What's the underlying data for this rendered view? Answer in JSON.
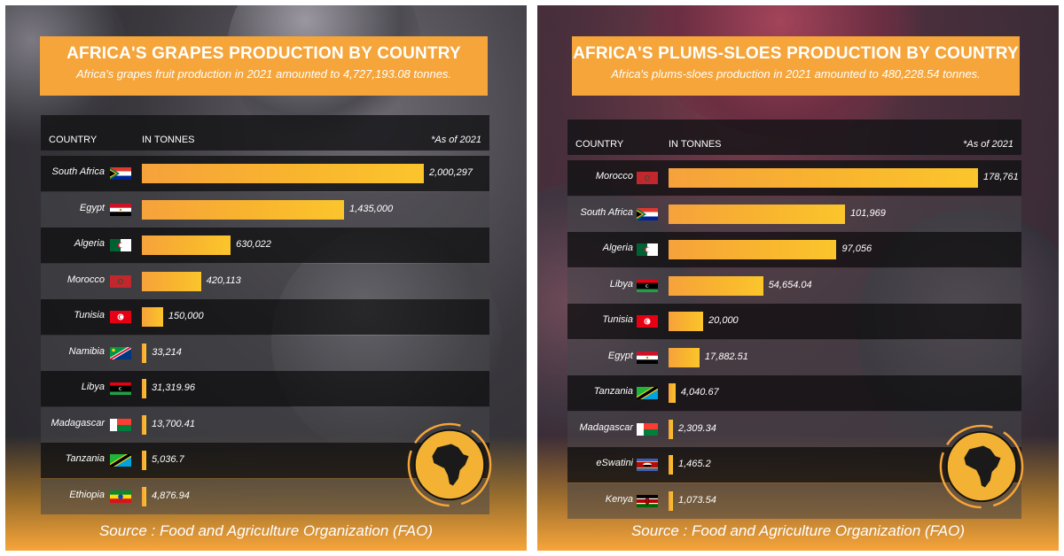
{
  "panels": [
    {
      "title": "AFRICA'S GRAPES PRODUCTION BY COUNTRY",
      "subtitle": "Africa's  grapes fruit production in 2021 amounted to 4,727,193.08 tonnes.",
      "header": {
        "country": "COUNTRY",
        "tonnes": "IN TONNES",
        "asof": "*As of 2021"
      },
      "source": "Source :  Food and Agriculture Organization (FAO)",
      "emblem_icon": "africa-map-emblem-icon",
      "chart_data": {
        "type": "bar",
        "orientation": "horizontal",
        "categories": [
          "South Africa",
          "Egypt",
          "Algeria",
          "Morocco",
          "Tunisia",
          "Namibia",
          "Libya",
          "Madagascar",
          "Tanzania",
          "Ethiopia"
        ],
        "values": [
          2000297,
          1435000,
          630022,
          420113,
          150000,
          33214,
          31319.96,
          13700.41,
          5036.7,
          4876.94
        ],
        "value_labels": [
          "2,000,297",
          "1,435,000",
          "630,022",
          "420,113",
          "150,000",
          "33,214",
          "31,319.96",
          "13,700.41",
          "5,036.7",
          "4,876.94"
        ],
        "bar_color": "#f7a93a"
      },
      "flags": [
        "flag-south-africa-icon",
        "flag-egypt-icon",
        "flag-algeria-icon",
        "flag-morocco-icon",
        "flag-tunisia-icon",
        "flag-namibia-icon",
        "flag-libya-icon",
        "flag-madagascar-icon",
        "flag-tanzania-icon",
        "flag-ethiopia-icon"
      ]
    },
    {
      "title": "AFRICA'S PLUMS-SLOES PRODUCTION BY COUNTRY",
      "subtitle": "Africa's plums-sloes production in 2021 amounted to 480,228.54 tonnes.",
      "header": {
        "country": "COUNTRY",
        "tonnes": "IN TONNES",
        "asof": "*As of 2021"
      },
      "source": "Source :  Food and Agriculture Organization (FAO)",
      "emblem_icon": "africa-map-emblem-icon",
      "chart_data": {
        "type": "bar",
        "orientation": "horizontal",
        "categories": [
          "Morocco",
          "South Africa",
          "Algeria",
          "Libya",
          "Tunisia",
          "Egypt",
          "Tanzania",
          "Madagascar",
          "eSwatini",
          "Kenya"
        ],
        "values": [
          178761,
          101969,
          97056,
          54654.04,
          20000,
          17882.51,
          4040.67,
          2309.34,
          1465.2,
          1073.54
        ],
        "value_labels": [
          "178,761",
          "101,969",
          "97,056",
          "54,654.04",
          "20,000",
          "17,882.51",
          "4,040.67",
          "2,309.34",
          "1,465.2",
          "1,073.54"
        ],
        "bar_color": "#f7a93a"
      },
      "flags": [
        "flag-morocco-icon",
        "flag-south-africa-icon",
        "flag-algeria-icon",
        "flag-libya-icon",
        "flag-tunisia-icon",
        "flag-egypt-icon",
        "flag-tanzania-icon",
        "flag-madagascar-icon",
        "flag-eswatini-icon",
        "flag-kenya-icon"
      ]
    }
  ]
}
